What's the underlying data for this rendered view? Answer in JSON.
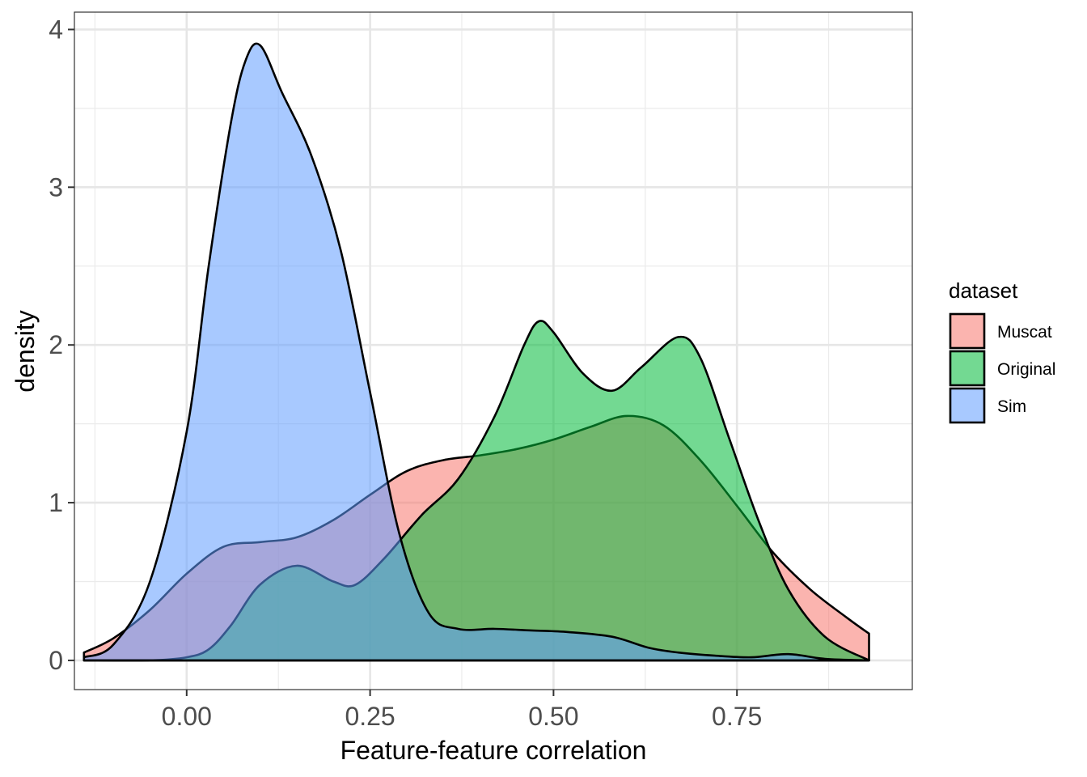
{
  "chart_data": {
    "type": "area",
    "xlabel": "Feature-feature correlation",
    "ylabel": "density",
    "xlim": [
      -0.153,
      0.989
    ],
    "ylim": [
      -0.185,
      4.11
    ],
    "x_ticks": [
      0.0,
      0.25,
      0.5,
      0.75
    ],
    "x_tick_labels": [
      "0.00",
      "0.25",
      "0.50",
      "0.75"
    ],
    "y_ticks": [
      0,
      1,
      2,
      3,
      4
    ],
    "y_tick_labels": [
      "0",
      "1",
      "2",
      "3",
      "4"
    ],
    "grid": true,
    "legend": {
      "title": "dataset",
      "position": "right"
    },
    "series": [
      {
        "name": "Muscat",
        "color": "#F8766D",
        "x": [
          -0.14,
          -0.1,
          -0.05,
          0.0,
          0.05,
          0.1,
          0.15,
          0.2,
          0.25,
          0.3,
          0.35,
          0.4,
          0.45,
          0.5,
          0.55,
          0.6,
          0.65,
          0.7,
          0.75,
          0.8,
          0.85,
          0.9,
          0.93
        ],
        "y": [
          0.05,
          0.14,
          0.32,
          0.55,
          0.72,
          0.75,
          0.78,
          0.89,
          1.05,
          1.2,
          1.27,
          1.3,
          1.34,
          1.4,
          1.48,
          1.55,
          1.49,
          1.27,
          0.98,
          0.68,
          0.45,
          0.27,
          0.17
        ]
      },
      {
        "name": "Original",
        "color": "#00BA38",
        "x": [
          -0.14,
          -0.05,
          0.0,
          0.03,
          0.06,
          0.1,
          0.15,
          0.2,
          0.23,
          0.27,
          0.32,
          0.37,
          0.42,
          0.46,
          0.48,
          0.5,
          0.54,
          0.58,
          0.62,
          0.67,
          0.7,
          0.74,
          0.78,
          0.82,
          0.87,
          0.93
        ],
        "y": [
          0.0,
          0.0,
          0.02,
          0.07,
          0.22,
          0.48,
          0.6,
          0.5,
          0.48,
          0.65,
          0.92,
          1.15,
          1.55,
          2.0,
          2.15,
          2.08,
          1.82,
          1.71,
          1.86,
          2.05,
          1.92,
          1.4,
          0.88,
          0.45,
          0.15,
          0.0
        ]
      },
      {
        "name": "Sim",
        "color": "#619CFF",
        "x": [
          -0.14,
          -0.1,
          -0.05,
          0.0,
          0.03,
          0.06,
          0.08,
          0.1,
          0.13,
          0.17,
          0.21,
          0.25,
          0.29,
          0.33,
          0.37,
          0.42,
          0.47,
          0.52,
          0.58,
          0.63,
          0.67,
          0.72,
          0.77,
          0.82,
          0.87,
          0.93
        ],
        "y": [
          0.02,
          0.1,
          0.5,
          1.45,
          2.5,
          3.4,
          3.8,
          3.9,
          3.6,
          3.2,
          2.6,
          1.7,
          0.8,
          0.3,
          0.2,
          0.2,
          0.19,
          0.18,
          0.15,
          0.08,
          0.05,
          0.03,
          0.02,
          0.04,
          0.01,
          0.0
        ]
      }
    ]
  }
}
